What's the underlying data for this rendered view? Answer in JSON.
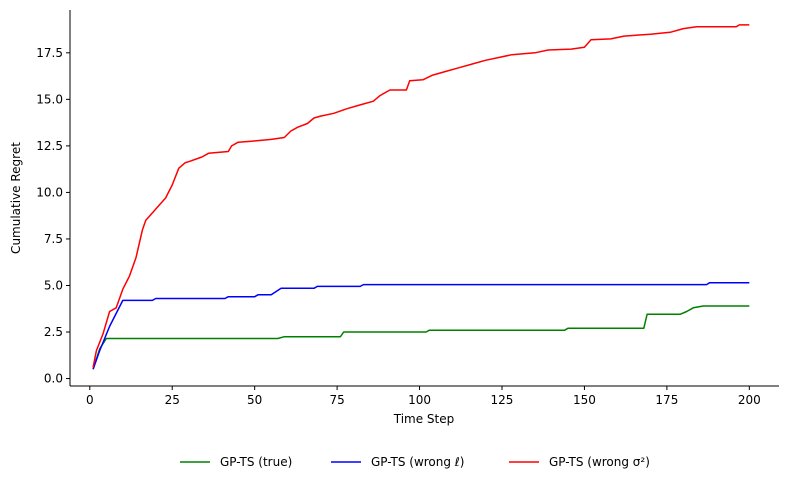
{
  "chart_data": {
    "type": "line",
    "title": "",
    "xlabel": "Time Step",
    "ylabel": "Cumulative Regret",
    "xlim": [
      -6,
      209
    ],
    "ylim": [
      -0.4,
      19.8
    ],
    "xticks": [
      0,
      25,
      50,
      75,
      100,
      125,
      150,
      175,
      200
    ],
    "yticks": [
      0.0,
      2.5,
      5.0,
      7.5,
      10.0,
      12.5,
      15.0,
      17.5
    ],
    "ytick_labels": [
      "0.0",
      "2.5",
      "5.0",
      "7.5",
      "10.0",
      "12.5",
      "15.0",
      "17.5"
    ],
    "grid": false,
    "legend_position": "bottom-center",
    "series": [
      {
        "name": "GP-TS (true)",
        "color": "#008000",
        "x": [
          1,
          3,
          5,
          10,
          57,
          59,
          76,
          77,
          102,
          103,
          144,
          145,
          168,
          169,
          179,
          181,
          183,
          186,
          200
        ],
        "y": [
          0.5,
          1.6,
          2.15,
          2.15,
          2.15,
          2.25,
          2.25,
          2.5,
          2.5,
          2.6,
          2.6,
          2.7,
          2.7,
          3.45,
          3.45,
          3.6,
          3.8,
          3.9,
          3.9
        ]
      },
      {
        "name": "GP-TS (wrong ℓ)",
        "color": "#0000ff",
        "x": [
          1,
          3,
          6,
          10,
          19,
          20,
          41,
          42,
          50,
          51,
          55,
          58,
          68,
          69,
          82,
          83,
          187,
          188,
          200
        ],
        "y": [
          0.5,
          1.5,
          2.8,
          4.2,
          4.2,
          4.3,
          4.3,
          4.4,
          4.4,
          4.5,
          4.5,
          4.85,
          4.85,
          4.95,
          4.95,
          5.05,
          5.05,
          5.15,
          5.15
        ]
      },
      {
        "name": "GP-TS (wrong σ²)",
        "color": "#ff0000",
        "x": [
          1,
          2,
          4,
          6,
          8,
          10,
          12,
          14,
          16,
          17,
          19,
          21,
          23,
          25,
          27,
          29,
          30,
          34,
          36,
          42,
          43,
          45,
          49,
          55,
          59,
          61,
          63,
          66,
          68,
          70,
          74,
          78,
          82,
          86,
          88,
          91,
          96,
          97,
          101,
          104,
          108,
          112,
          116,
          120,
          124,
          128,
          135,
          139,
          146,
          150,
          152,
          158,
          162,
          166,
          170,
          176,
          180,
          184,
          190,
          196,
          197,
          200
        ],
        "y": [
          0.6,
          1.5,
          2.4,
          3.6,
          3.8,
          4.8,
          5.5,
          6.5,
          8.0,
          8.5,
          8.9,
          9.3,
          9.7,
          10.4,
          11.3,
          11.6,
          11.65,
          11.9,
          12.1,
          12.2,
          12.5,
          12.7,
          12.75,
          12.85,
          12.95,
          13.3,
          13.5,
          13.7,
          14.0,
          14.1,
          14.25,
          14.5,
          14.7,
          14.9,
          15.2,
          15.5,
          15.5,
          16.0,
          16.05,
          16.3,
          16.5,
          16.7,
          16.9,
          17.1,
          17.25,
          17.4,
          17.5,
          17.65,
          17.7,
          17.8,
          18.2,
          18.25,
          18.4,
          18.45,
          18.5,
          18.6,
          18.8,
          18.9,
          18.9,
          18.9,
          19.0,
          19.0
        ]
      }
    ]
  }
}
